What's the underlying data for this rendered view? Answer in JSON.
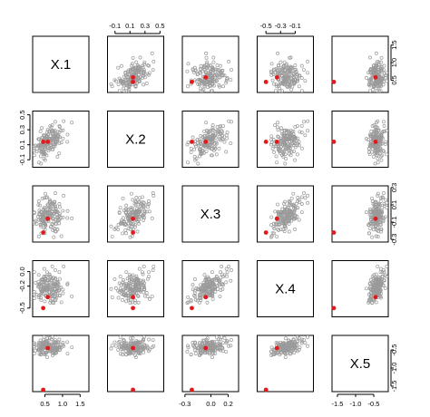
{
  "chart_data": {
    "type": "scatter",
    "variables": [
      "X.1",
      "X.2",
      "X.3",
      "X.4",
      "X.5"
    ],
    "ranges": {
      "X.1": [
        0.15,
        1.75
      ],
      "X.2": [
        -0.2,
        0.55
      ],
      "X.3": [
        -0.33,
        0.32
      ],
      "X.4": [
        -0.62,
        0.15
      ],
      "X.5": [
        -1.65,
        -0.1
      ]
    },
    "ticks": {
      "X.1": [
        0.5,
        1.0,
        1.5
      ],
      "X.2": [
        -0.1,
        0.1,
        0.3,
        0.5
      ],
      "X.3": [
        -0.3,
        -0.2,
        -0.1,
        0.0,
        0.1,
        0.2,
        0.3
      ],
      "X.4": [
        -0.5,
        -0.3,
        -0.1,
        0.1
      ],
      "X.5": [
        -1.5,
        -1.0,
        -0.5
      ]
    },
    "tick_labels": {
      "X.1": [
        "0.5",
        "1.0",
        "1.5"
      ],
      "X.2": [
        "-0.1",
        "0.1",
        "0.3",
        "0.5"
      ],
      "X.3": [
        "-0.3",
        "0.0",
        "0.2"
      ],
      "X.3_right": [
        "-0.3",
        "-0.1",
        "0.1",
        "0.3"
      ],
      "X.4": [
        "-0.5",
        "-0.3",
        "-0.1"
      ],
      "X.4_left": [
        "-0.5",
        "-0.2",
        "0.0"
      ],
      "X.5": [
        "-1.5",
        "-1.0",
        "-0.5"
      ],
      "X.5_right": [
        "-1.5",
        "-1.0",
        "-0.5"
      ],
      "X.1_right": [
        "0.5",
        "1.0",
        "1.5"
      ],
      "X.2_left": [
        "-0.1",
        "0.1",
        "0.3",
        "0.5"
      ]
    },
    "cloud": {
      "n": 160,
      "means": [
        0.62,
        0.16,
        0.0,
        -0.2,
        -0.42
      ],
      "sds": [
        0.2,
        0.11,
        0.11,
        0.12,
        0.12
      ],
      "correlation": [
        [
          1.0,
          0.45,
          0.15,
          0.0,
          0.0
        ],
        [
          0.45,
          1.0,
          0.55,
          0.35,
          0.1
        ],
        [
          0.15,
          0.55,
          1.0,
          0.65,
          0.3
        ],
        [
          0.0,
          0.35,
          0.65,
          1.0,
          0.55
        ],
        [
          0.0,
          0.1,
          0.3,
          0.55,
          1.0
        ]
      ],
      "color": "#9a9a9a",
      "marker": "open-circle"
    },
    "highlighted_points": [
      {
        "values": [
          0.58,
          0.14,
          -0.06,
          -0.35,
          -0.45
        ],
        "color": "#e31a1c"
      },
      {
        "values": [
          0.45,
          0.14,
          -0.22,
          -0.5,
          -1.6
        ],
        "color": "#e31a1c"
      }
    ],
    "layout": "pairs-matrix-5x5",
    "grid": false,
    "legend": "none"
  }
}
